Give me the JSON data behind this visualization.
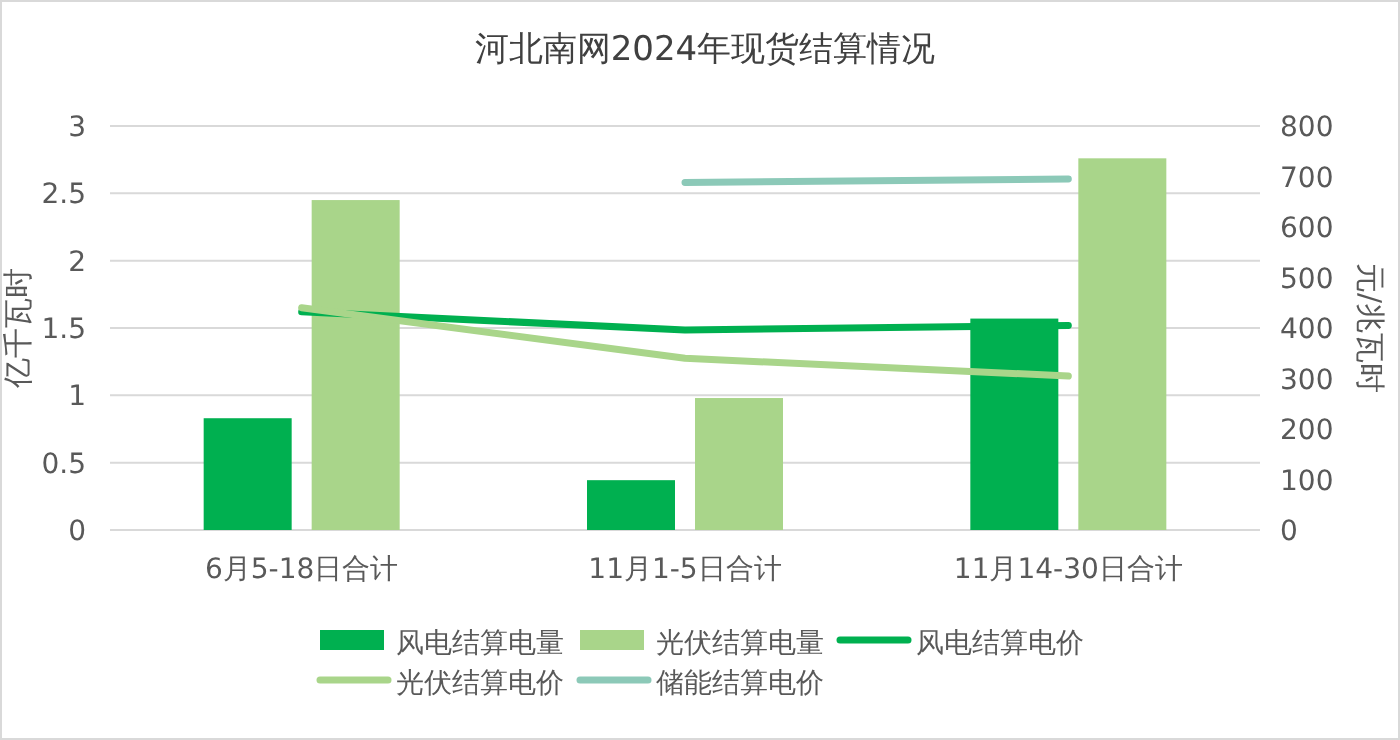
{
  "chart_data": {
    "type": "bar",
    "title": "河北南网2024年现货结算情况",
    "ylabel": "亿千瓦时",
    "y2label": "元/兆瓦时",
    "categories": [
      "6月5-18日合计",
      "11月1-5日合计",
      "11月14-30日合计"
    ],
    "series": [
      {
        "name": "风电结算电量",
        "color": "#00b050",
        "values": [
          0.83,
          0.37,
          1.57
        ]
      },
      {
        "name": "光伏结算电量",
        "color": "#a9d58a",
        "values": [
          2.45,
          0.98,
          2.76
        ]
      },
      {
        "name": "风电结算电价",
        "type": "line",
        "axis": "y2",
        "color": "#00b050",
        "values": [
          432,
          396,
          405
        ]
      },
      {
        "name": "光伏结算电价",
        "type": "line",
        "axis": "y2",
        "color": "#a9d58a",
        "values": [
          440,
          340,
          305
        ]
      },
      {
        "name": "储能结算电价",
        "type": "line",
        "axis": "y2",
        "color": "#8cc9b8",
        "values": [
          null,
          688,
          695
        ]
      }
    ],
    "ylim": [
      0,
      3
    ],
    "yticks": [
      0,
      0.5,
      1,
      1.5,
      2,
      2.5,
      3
    ],
    "y2lim": [
      0,
      800
    ],
    "y2ticks": [
      0,
      100,
      200,
      300,
      400,
      500,
      600,
      700,
      800
    ],
    "grid": "y",
    "legend": "bottom",
    "marker": "none",
    "line_style": "solid"
  }
}
